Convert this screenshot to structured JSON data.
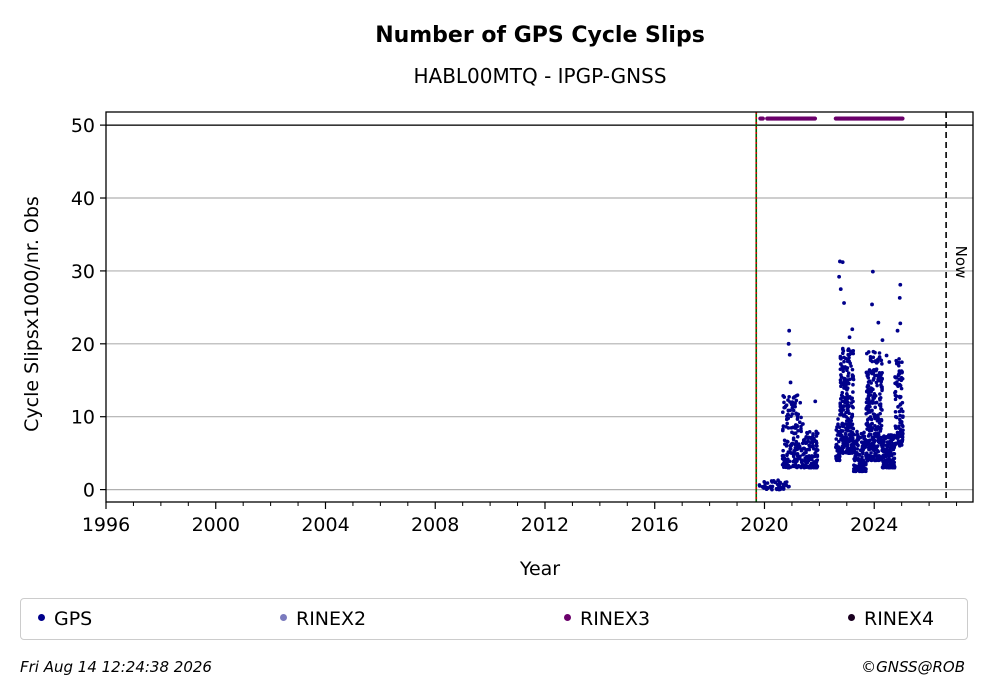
{
  "chart_data": {
    "type": "scatter",
    "title": "Number of GPS Cycle Slips",
    "subtitle": "HABL00MTQ - IPGP-GNSS",
    "xlabel": "Year",
    "ylabel": "Cycle Slipsx1000/nr. Obs",
    "xlim": [
      1996,
      2027.6
    ],
    "ylim": [
      -1.7,
      51.8
    ],
    "x_ticks": [
      1996,
      2000,
      2004,
      2008,
      2012,
      2016,
      2020,
      2024
    ],
    "y_ticks": [
      0,
      10,
      20,
      30,
      40,
      50
    ],
    "grid": "horizontal",
    "reference_line_y": 50,
    "vlines": [
      {
        "x": 2019.7,
        "color": "#006400",
        "style": "solid"
      },
      {
        "x": 2019.7,
        "color": "#cc0000",
        "style": "dotted"
      },
      {
        "x": 2026.62,
        "color": "#000000",
        "style": "dashed",
        "label": "Now"
      }
    ],
    "series": [
      {
        "name": "GPS",
        "color": "#00008b",
        "clusters": [
          {
            "x": [
              2019.8,
              2020.9
            ],
            "y_low": 0,
            "y_high": 1.3,
            "n": 50
          },
          {
            "x": [
              2020.65,
              2021.35
            ],
            "y_low": 3,
            "y_high": 13,
            "n": 150
          },
          {
            "x": [
              2021.35,
              2021.95
            ],
            "y_low": 3,
            "y_high": 8,
            "n": 120
          },
          {
            "x": [
              2022.6,
              2022.75
            ],
            "y_low": 4,
            "y_high": 10,
            "n": 40
          },
          {
            "x": [
              2022.75,
              2023.25
            ],
            "y_low": 5,
            "y_high": 20,
            "n": 250
          },
          {
            "x": [
              2023.25,
              2023.7
            ],
            "y_low": 2.5,
            "y_high": 8,
            "n": 140
          },
          {
            "x": [
              2023.7,
              2024.3
            ],
            "y_low": 4,
            "y_high": 19,
            "n": 280
          },
          {
            "x": [
              2024.3,
              2024.75
            ],
            "y_low": 3,
            "y_high": 7.5,
            "n": 140
          },
          {
            "x": [
              2024.75,
              2025.05
            ],
            "y_low": 6,
            "y_high": 18,
            "n": 100
          }
        ],
        "outliers": [
          [
            2020.9,
            21.8
          ],
          [
            2020.88,
            20
          ],
          [
            2020.92,
            18.5
          ],
          [
            2020.95,
            14.7
          ],
          [
            2021.85,
            12.1
          ],
          [
            2022.72,
            29.2
          ],
          [
            2022.75,
            31.3
          ],
          [
            2022.85,
            31.2
          ],
          [
            2022.78,
            27.5
          ],
          [
            2022.9,
            25.6
          ],
          [
            2023.2,
            22
          ],
          [
            2023.1,
            20.9
          ],
          [
            2023.95,
            29.9
          ],
          [
            2023.92,
            25.4
          ],
          [
            2024.15,
            22.9
          ],
          [
            2024.3,
            20.5
          ],
          [
            2024.55,
            17.5
          ],
          [
            2024.95,
            28.1
          ],
          [
            2024.93,
            26.3
          ],
          [
            2024.95,
            22.8
          ],
          [
            2024.85,
            21.8
          ],
          [
            2024.45,
            18.4
          ],
          [
            2021.4,
            9
          ]
        ]
      },
      {
        "name": "RINEX2",
        "color": "#7b7bbe",
        "points": []
      },
      {
        "name": "RINEX3",
        "color": "#6b006b",
        "y": 50.9,
        "ranges": [
          [
            2019.85,
            2019.95
          ],
          [
            2020.1,
            2021.85
          ],
          [
            2022.6,
            2025.05
          ]
        ]
      },
      {
        "name": "RINEX4",
        "color": "#1a0020",
        "points": []
      }
    ]
  },
  "now_label": "Now",
  "legend": [
    {
      "label": "GPS",
      "color": "#00008b"
    },
    {
      "label": "RINEX2",
      "color": "#7b7bbe"
    },
    {
      "label": "RINEX3",
      "color": "#6b006b"
    },
    {
      "label": "RINEX4",
      "color": "#1a0020"
    }
  ],
  "footer": {
    "timestamp": "Fri Aug 14 12:24:38 2026",
    "copyright": "©GNSS@ROB"
  }
}
